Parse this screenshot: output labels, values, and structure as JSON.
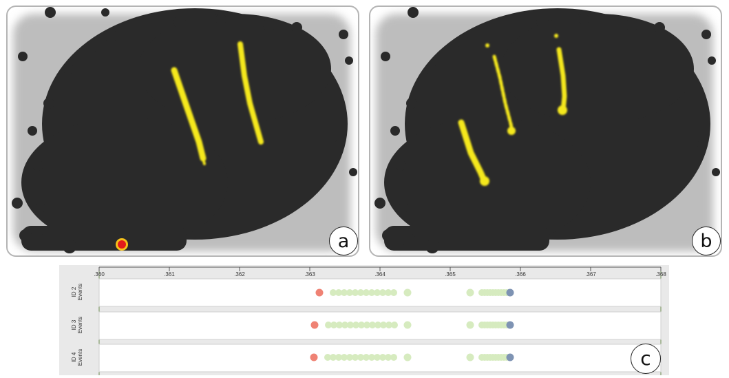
{
  "panels": [
    {
      "id": "a",
      "label": "a"
    },
    {
      "id": "b",
      "label": "b"
    }
  ],
  "timeline": {
    "label": "c",
    "ticks": [
      ".360",
      ".361",
      ".362",
      ".363",
      ".364",
      ".365",
      ".366",
      ".367",
      ".368"
    ],
    "rows": [
      {
        "label_line1": "ID 2",
        "label_line2": "Events"
      },
      {
        "label_line1": "ID 3",
        "label_line2": "Events"
      },
      {
        "label_line1": "ID 4",
        "label_line2": "Events"
      }
    ]
  },
  "colors": {
    "density": "#2b2b2b",
    "halo": "#b9b9b9",
    "trajectory": "#f5e81a",
    "event_start": "#ef8274",
    "event_mid": "#d6ebbf",
    "event_end": "#7e93b3",
    "marker": "#e21b1b"
  }
}
